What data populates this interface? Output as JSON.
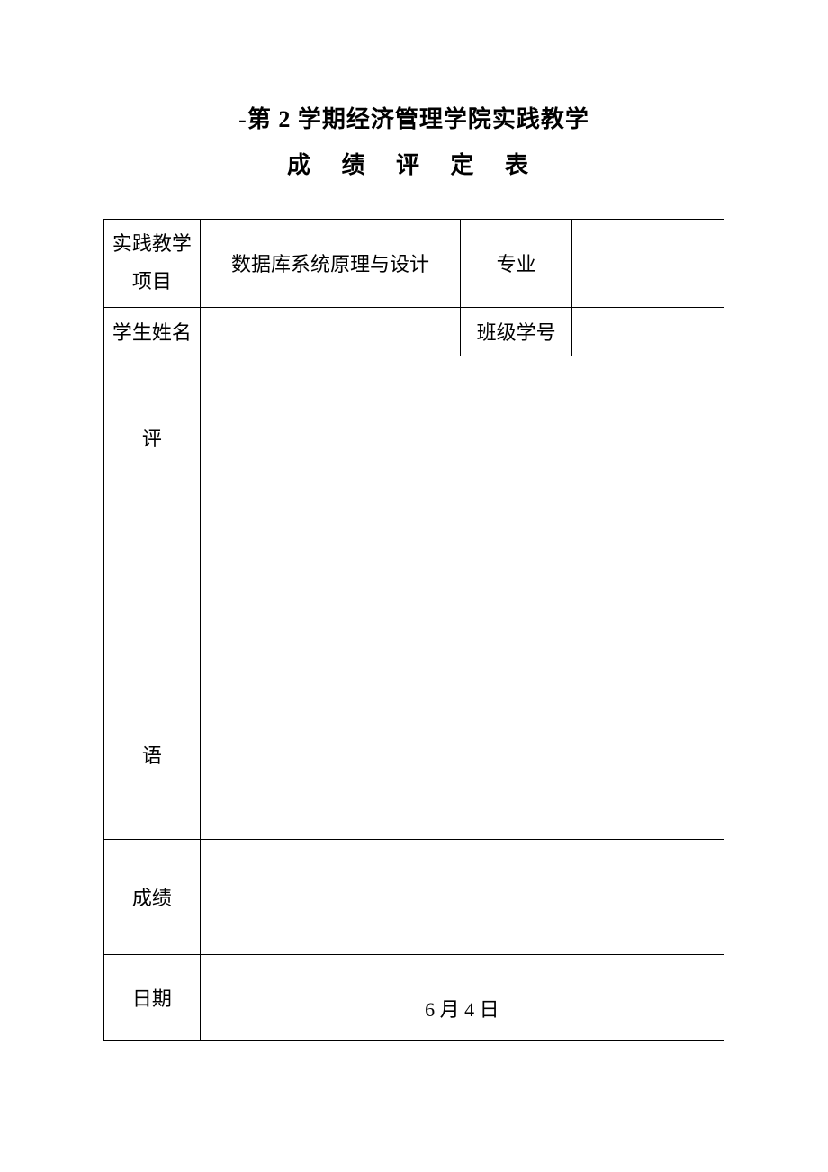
{
  "title": {
    "line1": "-第 2 学期经济管理学院实践教学",
    "line2": "成 绩 评 定 表"
  },
  "table": {
    "rows": {
      "project": {
        "label_line1": "实践教学",
        "label_line2": "项目",
        "value": "数据库系统原理与设计",
        "major_label": "专业",
        "major_value": ""
      },
      "student": {
        "name_label": "学生姓名",
        "name_value": "",
        "class_label": "班级学号",
        "class_value": ""
      },
      "comment": {
        "label_char1": "评",
        "label_char2": "语",
        "value": ""
      },
      "grade": {
        "label": "成绩",
        "value": ""
      },
      "date": {
        "label": "日期",
        "value": "6 月 4 日"
      }
    }
  },
  "styles": {
    "background_color": "#ffffff",
    "text_color": "#000000",
    "border_color": "#000000",
    "title_fontsize": 26,
    "cell_fontsize": 22,
    "font_family": "SimSun"
  }
}
